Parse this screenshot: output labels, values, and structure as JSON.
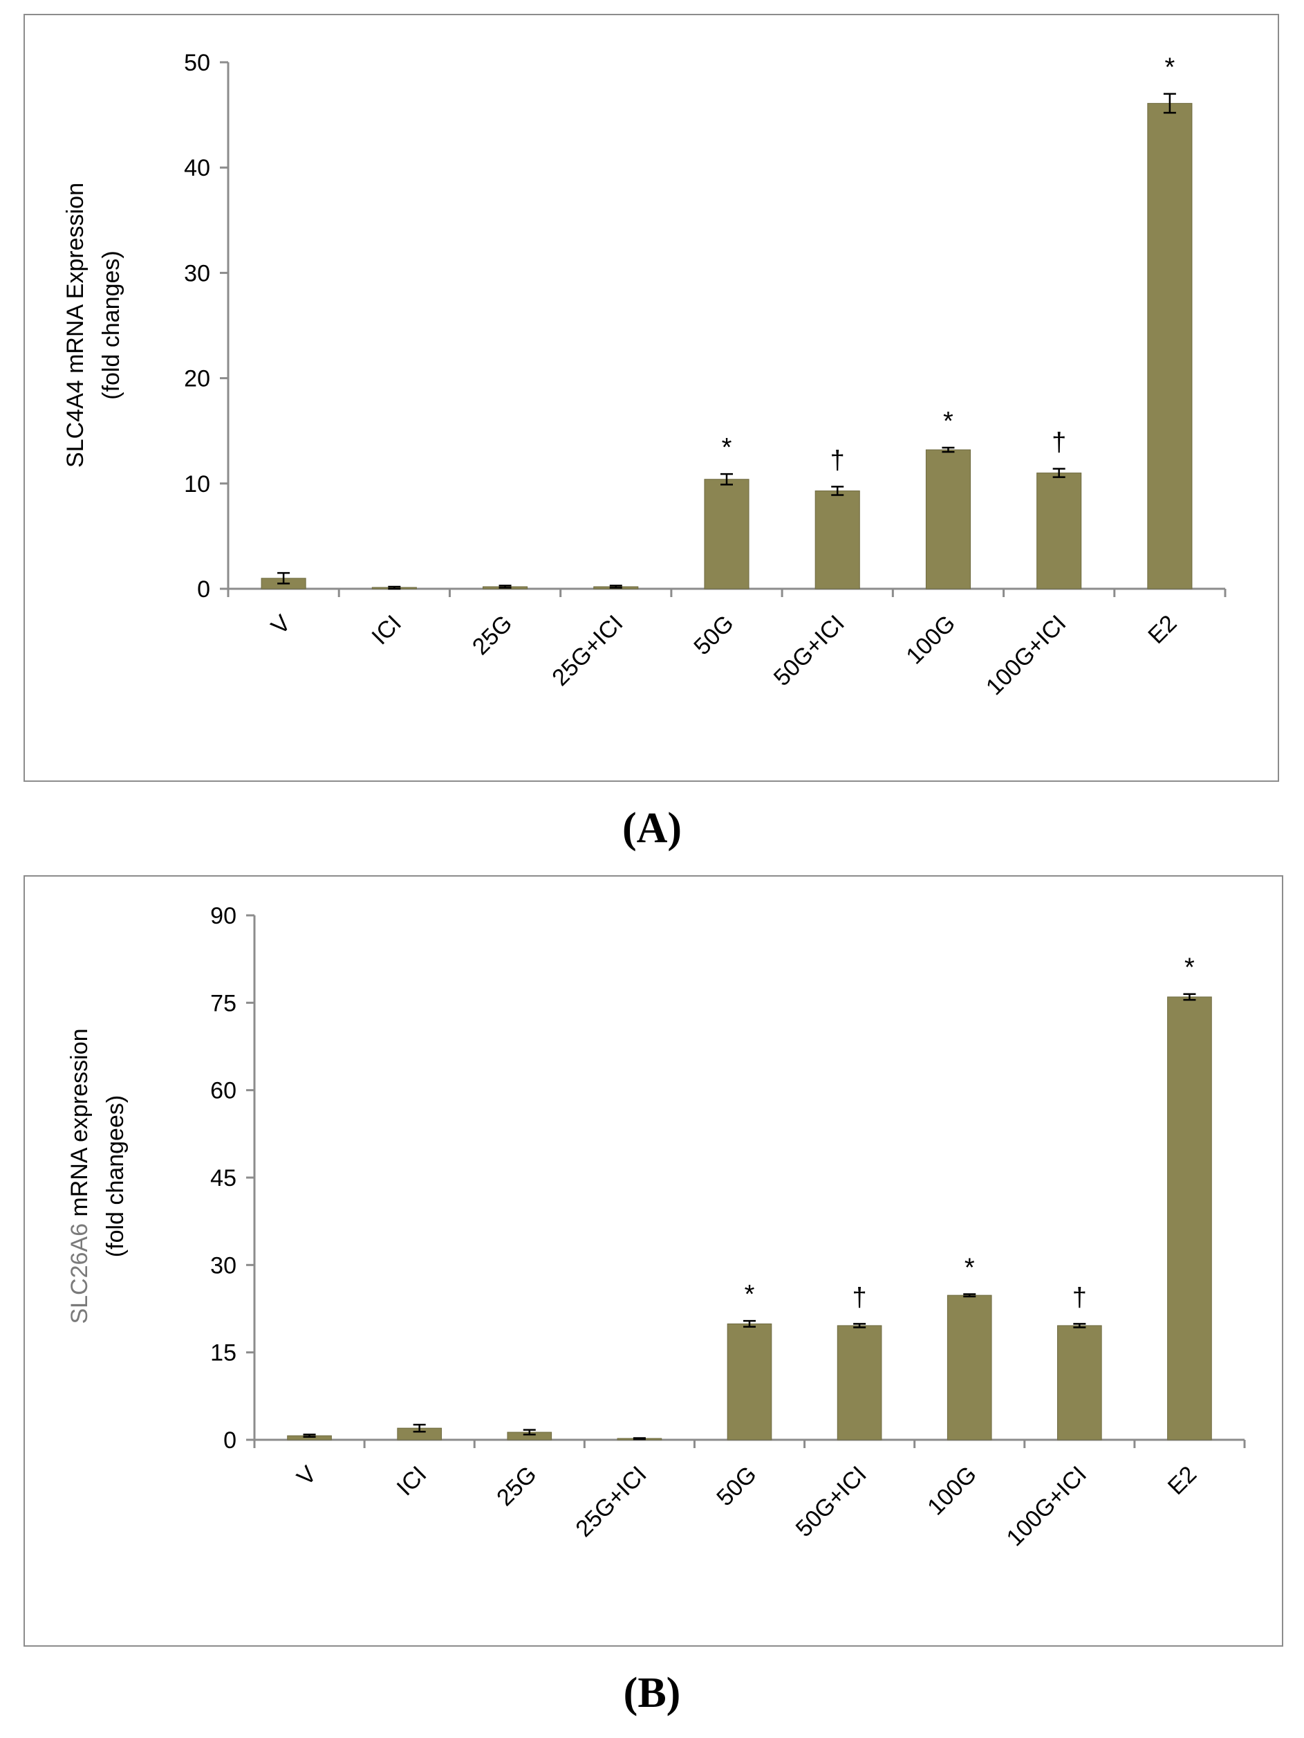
{
  "panels": [
    {
      "label": "(A)"
    },
    {
      "label": "(B)"
    }
  ],
  "colors": {
    "bar": "#8b8552",
    "bar_edge": "#6e6a40",
    "axis": "#8c8c8c",
    "error_bar": "#000000"
  },
  "chart_data": [
    {
      "type": "bar",
      "title": "",
      "xlabel": "",
      "ylabel_gene": "SLC4A4",
      "ylabel_rest": "mRNA Expression",
      "ylabel_line2": "(fold changes)",
      "categories": [
        "V",
        "ICI",
        "25G",
        "25G+ICI",
        "50G",
        "50G+ICI",
        "100G",
        "100G+ICI",
        "E2"
      ],
      "values": [
        1.0,
        0.1,
        0.2,
        0.2,
        10.4,
        9.3,
        13.2,
        11.0,
        46.1
      ],
      "errors": [
        0.5,
        0.1,
        0.1,
        0.1,
        0.5,
        0.4,
        0.2,
        0.4,
        0.9
      ],
      "markers": [
        "",
        "",
        "",
        "",
        "*",
        "†",
        "*",
        "†",
        "*"
      ],
      "ylim": [
        0,
        50
      ],
      "yticks": [
        0,
        10,
        20,
        30,
        40,
        50
      ],
      "grid": false
    },
    {
      "type": "bar",
      "title": "",
      "xlabel": "",
      "ylabel_gene": "SLC26A6",
      "ylabel_rest": "mRNA expression",
      "ylabel_line2": "(fold changees)",
      "categories": [
        "V",
        "ICI",
        "25G",
        "25G+ICI",
        "50G",
        "50G+ICI",
        "100G",
        "100G+ICI",
        "E2"
      ],
      "values": [
        0.7,
        2.0,
        1.3,
        0.2,
        19.9,
        19.6,
        24.8,
        19.6,
        76.0
      ],
      "errors": [
        0.2,
        0.6,
        0.4,
        0.1,
        0.5,
        0.3,
        0.2,
        0.3,
        0.5
      ],
      "markers": [
        "",
        "",
        "",
        "",
        "*",
        "†",
        "*",
        "†",
        "*"
      ],
      "ylim": [
        0,
        90
      ],
      "yticks": [
        0,
        15,
        30,
        45,
        60,
        75,
        90
      ],
      "grid": false
    }
  ]
}
